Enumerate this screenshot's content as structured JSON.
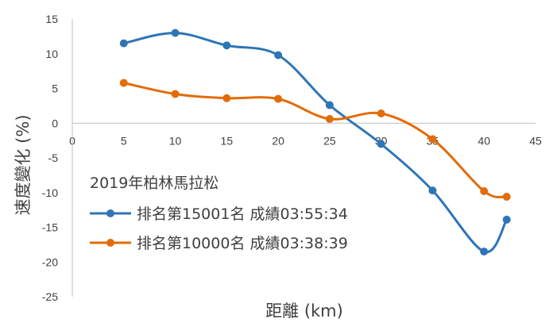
{
  "chart_data": {
    "type": "line",
    "smooth": true,
    "xlabel": "距離 (km)",
    "ylabel": "速度變化 (%)",
    "xlim": [
      0,
      45
    ],
    "ylim": [
      -25,
      15
    ],
    "xticks": [
      0,
      5,
      10,
      15,
      20,
      25,
      30,
      35,
      40,
      45
    ],
    "yticks": [
      15,
      10,
      5,
      0,
      -5,
      -10,
      -15,
      -20,
      -25
    ],
    "grid": false,
    "legend_title": "2019年柏林馬拉松",
    "legend_position": "center-left",
    "series": [
      {
        "name": "排名第15001名 成績03:55:34",
        "color": "#2E75B6",
        "x": [
          5,
          10,
          15,
          20,
          25,
          30,
          35,
          40,
          42.2
        ],
        "y": [
          11.5,
          13.0,
          11.2,
          9.8,
          2.6,
          -3.0,
          -9.7,
          -18.5,
          -13.9
        ]
      },
      {
        "name": "排名第10000名 成績03:38:39",
        "color": "#E36C09",
        "x": [
          5,
          10,
          15,
          20,
          25,
          30,
          35,
          40,
          42.2
        ],
        "y": [
          5.8,
          4.2,
          3.6,
          3.5,
          0.6,
          1.4,
          -2.3,
          -9.8,
          -10.6
        ]
      }
    ]
  }
}
